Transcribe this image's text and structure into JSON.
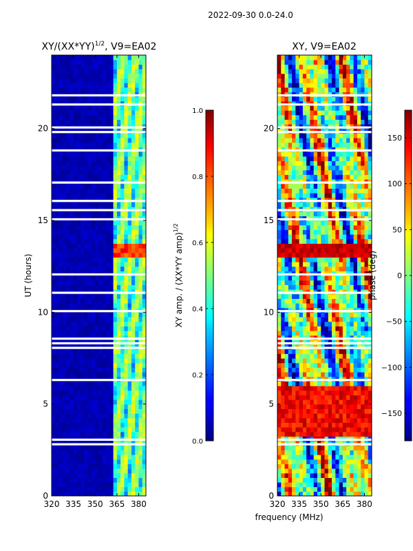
{
  "suptitle": "2022-09-30 0.0-24.0",
  "shared_xlabel": "frequency (MHz)",
  "chart_data": [
    {
      "type": "heatmap",
      "title_main": "XY/(XX*YY)",
      "title_sup": "1/2",
      "title_tail": ", V9=EA02",
      "ylabel": "UT (hours)",
      "xlim": [
        320,
        385
      ],
      "ylim": [
        0,
        24
      ],
      "xticks": [
        320,
        335,
        350,
        365,
        380
      ],
      "yticks": [
        0,
        5,
        10,
        15,
        20
      ],
      "colorbar": {
        "label": "XY amp. / (XX*YY amp)",
        "label_sup": "1/2",
        "range": [
          0.0,
          1.0
        ],
        "ticks": [
          0.0,
          0.2,
          0.4,
          0.6,
          0.8,
          1.0
        ],
        "tick_labels": [
          "0.0",
          "0.2",
          "0.4",
          "0.6",
          "0.8",
          "1.0"
        ]
      },
      "notes": "Mostly low amplitude (~0.05) below 362 MHz; banded structure 0.2-0.7 between 362-382 MHz; peak ~0.85 near 13 h; horizontal white gaps are flagged data."
    },
    {
      "type": "heatmap",
      "title_main": "XY, V9=EA02",
      "ylabel": "",
      "xlim": [
        320,
        385
      ],
      "ylim": [
        0,
        24
      ],
      "xticks": [
        320,
        335,
        350,
        365,
        380
      ],
      "yticks": [
        0,
        5,
        10,
        15,
        20
      ],
      "colorbar": {
        "label": "phase (deg)",
        "range": [
          -180,
          180
        ],
        "ticks": [
          -150,
          -100,
          -50,
          0,
          50,
          100,
          150
        ],
        "tick_labels": [
          "−150",
          "−100",
          "−50",
          "0",
          "50",
          "100",
          "150"
        ]
      },
      "notes": "Phase varies widely across frequency and time; strong red/orange (~100-180 deg) bands around 3-6 h and 13 h; white rows are flagged data."
    }
  ]
}
